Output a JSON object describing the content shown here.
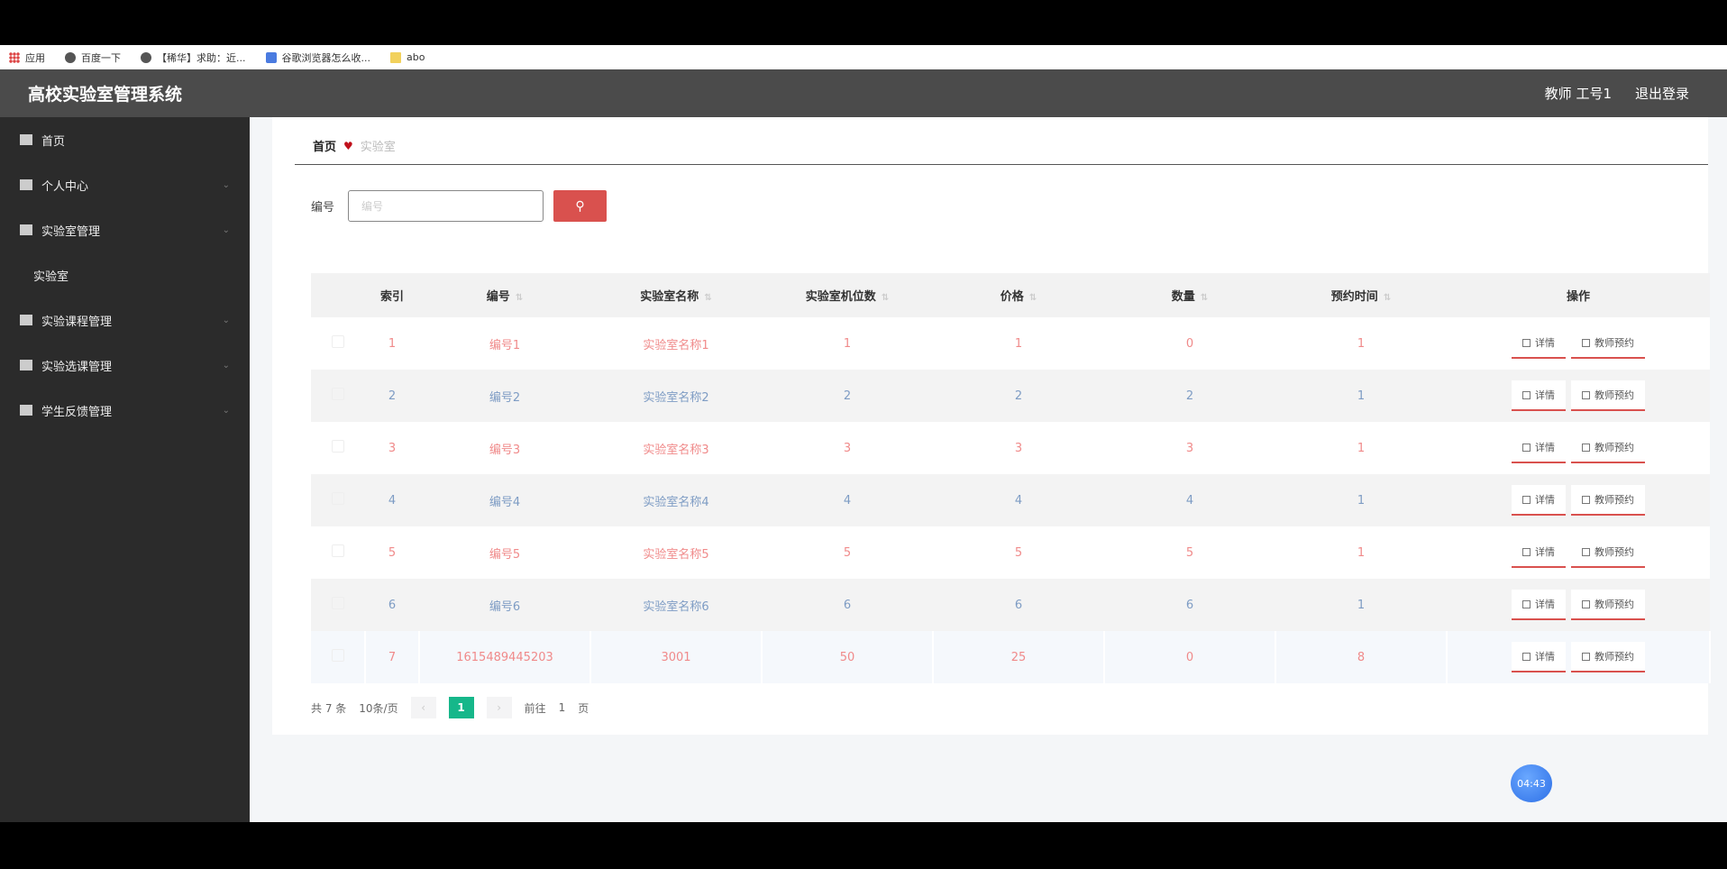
{
  "bookmarks": [
    {
      "label": "应用",
      "icon": "apps-grid-icon"
    },
    {
      "label": "百度一下",
      "icon": "globe-icon"
    },
    {
      "label": "【稀华】求助：近...",
      "icon": "globe-icon"
    },
    {
      "label": "谷歌浏览器怎么收...",
      "icon": "bookmark-icon"
    },
    {
      "label": "abo",
      "icon": "folder-icon"
    }
  ],
  "header": {
    "title": "高校实验室管理系统",
    "user": "教师 工号1",
    "logout": "退出登录"
  },
  "sidebar": {
    "items": [
      {
        "label": "首页",
        "icon": "home-icon"
      },
      {
        "label": "个人中心",
        "icon": "user-icon"
      },
      {
        "label": "实验室管理",
        "icon": "bar-chart-icon"
      },
      {
        "label": "实验室",
        "sub": true
      },
      {
        "label": "实验课程管理",
        "icon": "copy-icon"
      },
      {
        "label": "实验选课管理",
        "icon": "eye-icon"
      },
      {
        "label": "学生反馈管理",
        "icon": "feedback-icon"
      }
    ]
  },
  "breadcrumb": {
    "home": "首页",
    "current": "实验室"
  },
  "search": {
    "label": "编号",
    "placeholder": "编号",
    "value": ""
  },
  "table": {
    "headers": [
      "索引",
      "编号",
      "实验室名称",
      "实验室机位数",
      "价格",
      "数量",
      "预约时间",
      "操作"
    ],
    "rows": [
      [
        "1",
        "编号1",
        "实验室名称1",
        "1",
        "1",
        "0",
        "1"
      ],
      [
        "2",
        "编号2",
        "实验室名称2",
        "2",
        "2",
        "2",
        "1"
      ],
      [
        "3",
        "编号3",
        "实验室名称3",
        "3",
        "3",
        "3",
        "1"
      ],
      [
        "4",
        "编号4",
        "实验室名称4",
        "4",
        "4",
        "4",
        "1"
      ],
      [
        "5",
        "编号5",
        "实验室名称5",
        "5",
        "5",
        "5",
        "1"
      ],
      [
        "6",
        "编号6",
        "实验室名称6",
        "6",
        "6",
        "6",
        "1"
      ],
      [
        "7",
        "1615489445203",
        "3001",
        "50",
        "25",
        "0",
        "8"
      ]
    ],
    "actions": {
      "detail": "详情",
      "reserve": "教师预约"
    }
  },
  "pagination": {
    "total": "共 7 条",
    "page_size": "10条/页",
    "current": "1",
    "goto": "前往",
    "goto_value": "1",
    "page_unit": "页"
  },
  "timer": "04:43",
  "colors": {
    "accent": "#d9514e",
    "page_active": "#16b78a",
    "header_bg": "#4b4b4b",
    "sidebar_bg": "#2b2b2b"
  }
}
